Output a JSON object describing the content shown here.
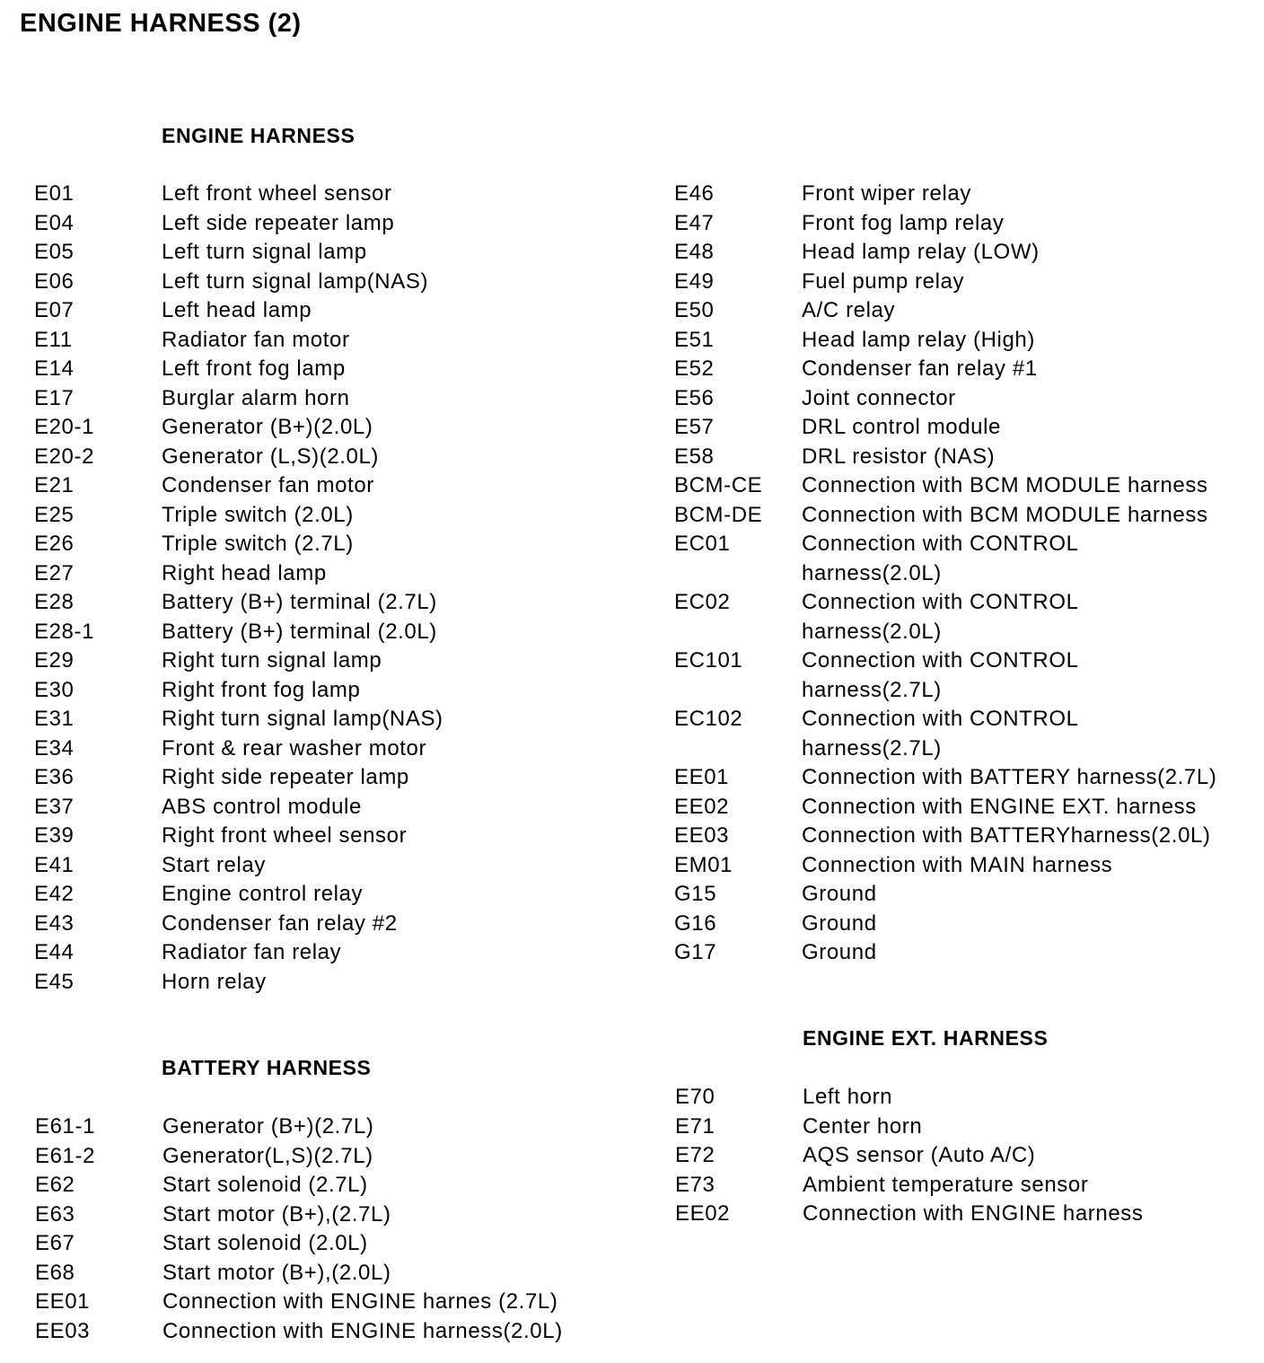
{
  "title": "ENGINE HARNESS (2)",
  "sections": {
    "engine": {
      "heading": "ENGINE HARNESS",
      "left": [
        {
          "code": "E01",
          "desc": "Left front wheel sensor"
        },
        {
          "code": "E04",
          "desc": "Left side repeater lamp"
        },
        {
          "code": "E05",
          "desc": "Left turn signal lamp"
        },
        {
          "code": "E06",
          "desc": "Left turn signal lamp(NAS)"
        },
        {
          "code": "E07",
          "desc": "Left head lamp"
        },
        {
          "code": "E11",
          "desc": "Radiator fan motor"
        },
        {
          "code": "E14",
          "desc": "Left front fog lamp"
        },
        {
          "code": "E17",
          "desc": "Burglar alarm horn"
        },
        {
          "code": "E20-1",
          "desc": "Generator (B+)(2.0L)"
        },
        {
          "code": "E20-2",
          "desc": "Generator (L,S)(2.0L)"
        },
        {
          "code": "E21",
          "desc": "Condenser fan motor"
        },
        {
          "code": "E25",
          "desc": "Triple switch (2.0L)"
        },
        {
          "code": "E26",
          "desc": "Triple switch (2.7L)"
        },
        {
          "code": "E27",
          "desc": "Right head lamp"
        },
        {
          "code": "E28",
          "desc": "Battery (B+) terminal (2.7L)"
        },
        {
          "code": "E28-1",
          "desc": "Battery (B+) terminal (2.0L)"
        },
        {
          "code": "E29",
          "desc": "Right turn signal lamp"
        },
        {
          "code": "E30",
          "desc": "Right front fog lamp"
        },
        {
          "code": "E31",
          "desc": "Right turn signal lamp(NAS)"
        },
        {
          "code": "E34",
          "desc": "Front & rear washer motor"
        },
        {
          "code": "E36",
          "desc": "Right side repeater lamp"
        },
        {
          "code": "E37",
          "desc": "ABS control module"
        },
        {
          "code": "E39",
          "desc": "Right front wheel sensor"
        },
        {
          "code": "E41",
          "desc": "Start relay"
        },
        {
          "code": "E42",
          "desc": "Engine control relay"
        },
        {
          "code": "E43",
          "desc": "Condenser fan relay #2"
        },
        {
          "code": "E44",
          "desc": "Radiator fan relay"
        },
        {
          "code": "E45",
          "desc": "Horn relay"
        }
      ],
      "right": [
        {
          "code": "E46",
          "desc": "Front wiper relay"
        },
        {
          "code": "E47",
          "desc": "Front fog lamp relay"
        },
        {
          "code": "E48",
          "desc": "Head lamp relay (LOW)"
        },
        {
          "code": "E49",
          "desc": "Fuel pump relay"
        },
        {
          "code": "E50",
          "desc": "A/C relay"
        },
        {
          "code": "E51",
          "desc": "Head lamp relay (High)"
        },
        {
          "code": "E52",
          "desc": "Condenser fan relay #1"
        },
        {
          "code": "E56",
          "desc": "Joint connector"
        },
        {
          "code": "E57",
          "desc": "DRL control module"
        },
        {
          "code": "E58",
          "desc": "DRL resistor (NAS)"
        },
        {
          "code": "BCM-CE",
          "desc": "Connection with BCM MODULE harness"
        },
        {
          "code": "BCM-DE",
          "desc": "Connection with BCM MODULE harness"
        },
        {
          "code": "EC01",
          "desc": "Connection with CONTROL",
          "desc2": "harness(2.0L)"
        },
        {
          "code": "EC02",
          "desc": "Connection with CONTROL",
          "desc2": "harness(2.0L)"
        },
        {
          "code": "EC101",
          "desc": "Connection with CONTROL",
          "desc2": "harness(2.7L)"
        },
        {
          "code": "EC102",
          "desc": "Connection with CONTROL",
          "desc2": "harness(2.7L)"
        },
        {
          "code": "EE01",
          "desc": "Connection with BATTERY harness(2.7L)"
        },
        {
          "code": "EE02",
          "desc": "Connection with ENGINE EXT. harness"
        },
        {
          "code": "EE03",
          "desc": "Connection with BATTERYharness(2.0L)"
        },
        {
          "code": "EM01",
          "desc": "Connection with MAIN harness"
        },
        {
          "code": "G15",
          "desc": "Ground"
        },
        {
          "code": "G16",
          "desc": "Ground"
        },
        {
          "code": "G17",
          "desc": "Ground"
        }
      ]
    },
    "battery": {
      "heading": "BATTERY HARNESS",
      "items": [
        {
          "code": "E61-1",
          "desc": "Generator (B+)(2.7L)"
        },
        {
          "code": "E61-2",
          "desc": "Generator(L,S)(2.7L)"
        },
        {
          "code": "E62",
          "desc": "Start solenoid (2.7L)"
        },
        {
          "code": "E63",
          "desc": "Start motor (B+),(2.7L)"
        },
        {
          "code": "E67",
          "desc": "Start solenoid (2.0L)"
        },
        {
          "code": "E68",
          "desc": "Start motor (B+),(2.0L)"
        },
        {
          "code": "EE01",
          "desc": "Connection with ENGINE harnes (2.7L)"
        },
        {
          "code": "EE03",
          "desc": "Connection with ENGINE harness(2.0L)"
        }
      ]
    },
    "engine_ext": {
      "heading": "ENGINE EXT. HARNESS",
      "items": [
        {
          "code": "E70",
          "desc": "Left horn"
        },
        {
          "code": "E71",
          "desc": "Center horn"
        },
        {
          "code": "E72",
          "desc": "AQS sensor (Auto A/C)"
        },
        {
          "code": "E73",
          "desc": "Ambient temperature sensor"
        },
        {
          "code": "EE02",
          "desc": "Connection with ENGINE harness"
        }
      ]
    }
  }
}
